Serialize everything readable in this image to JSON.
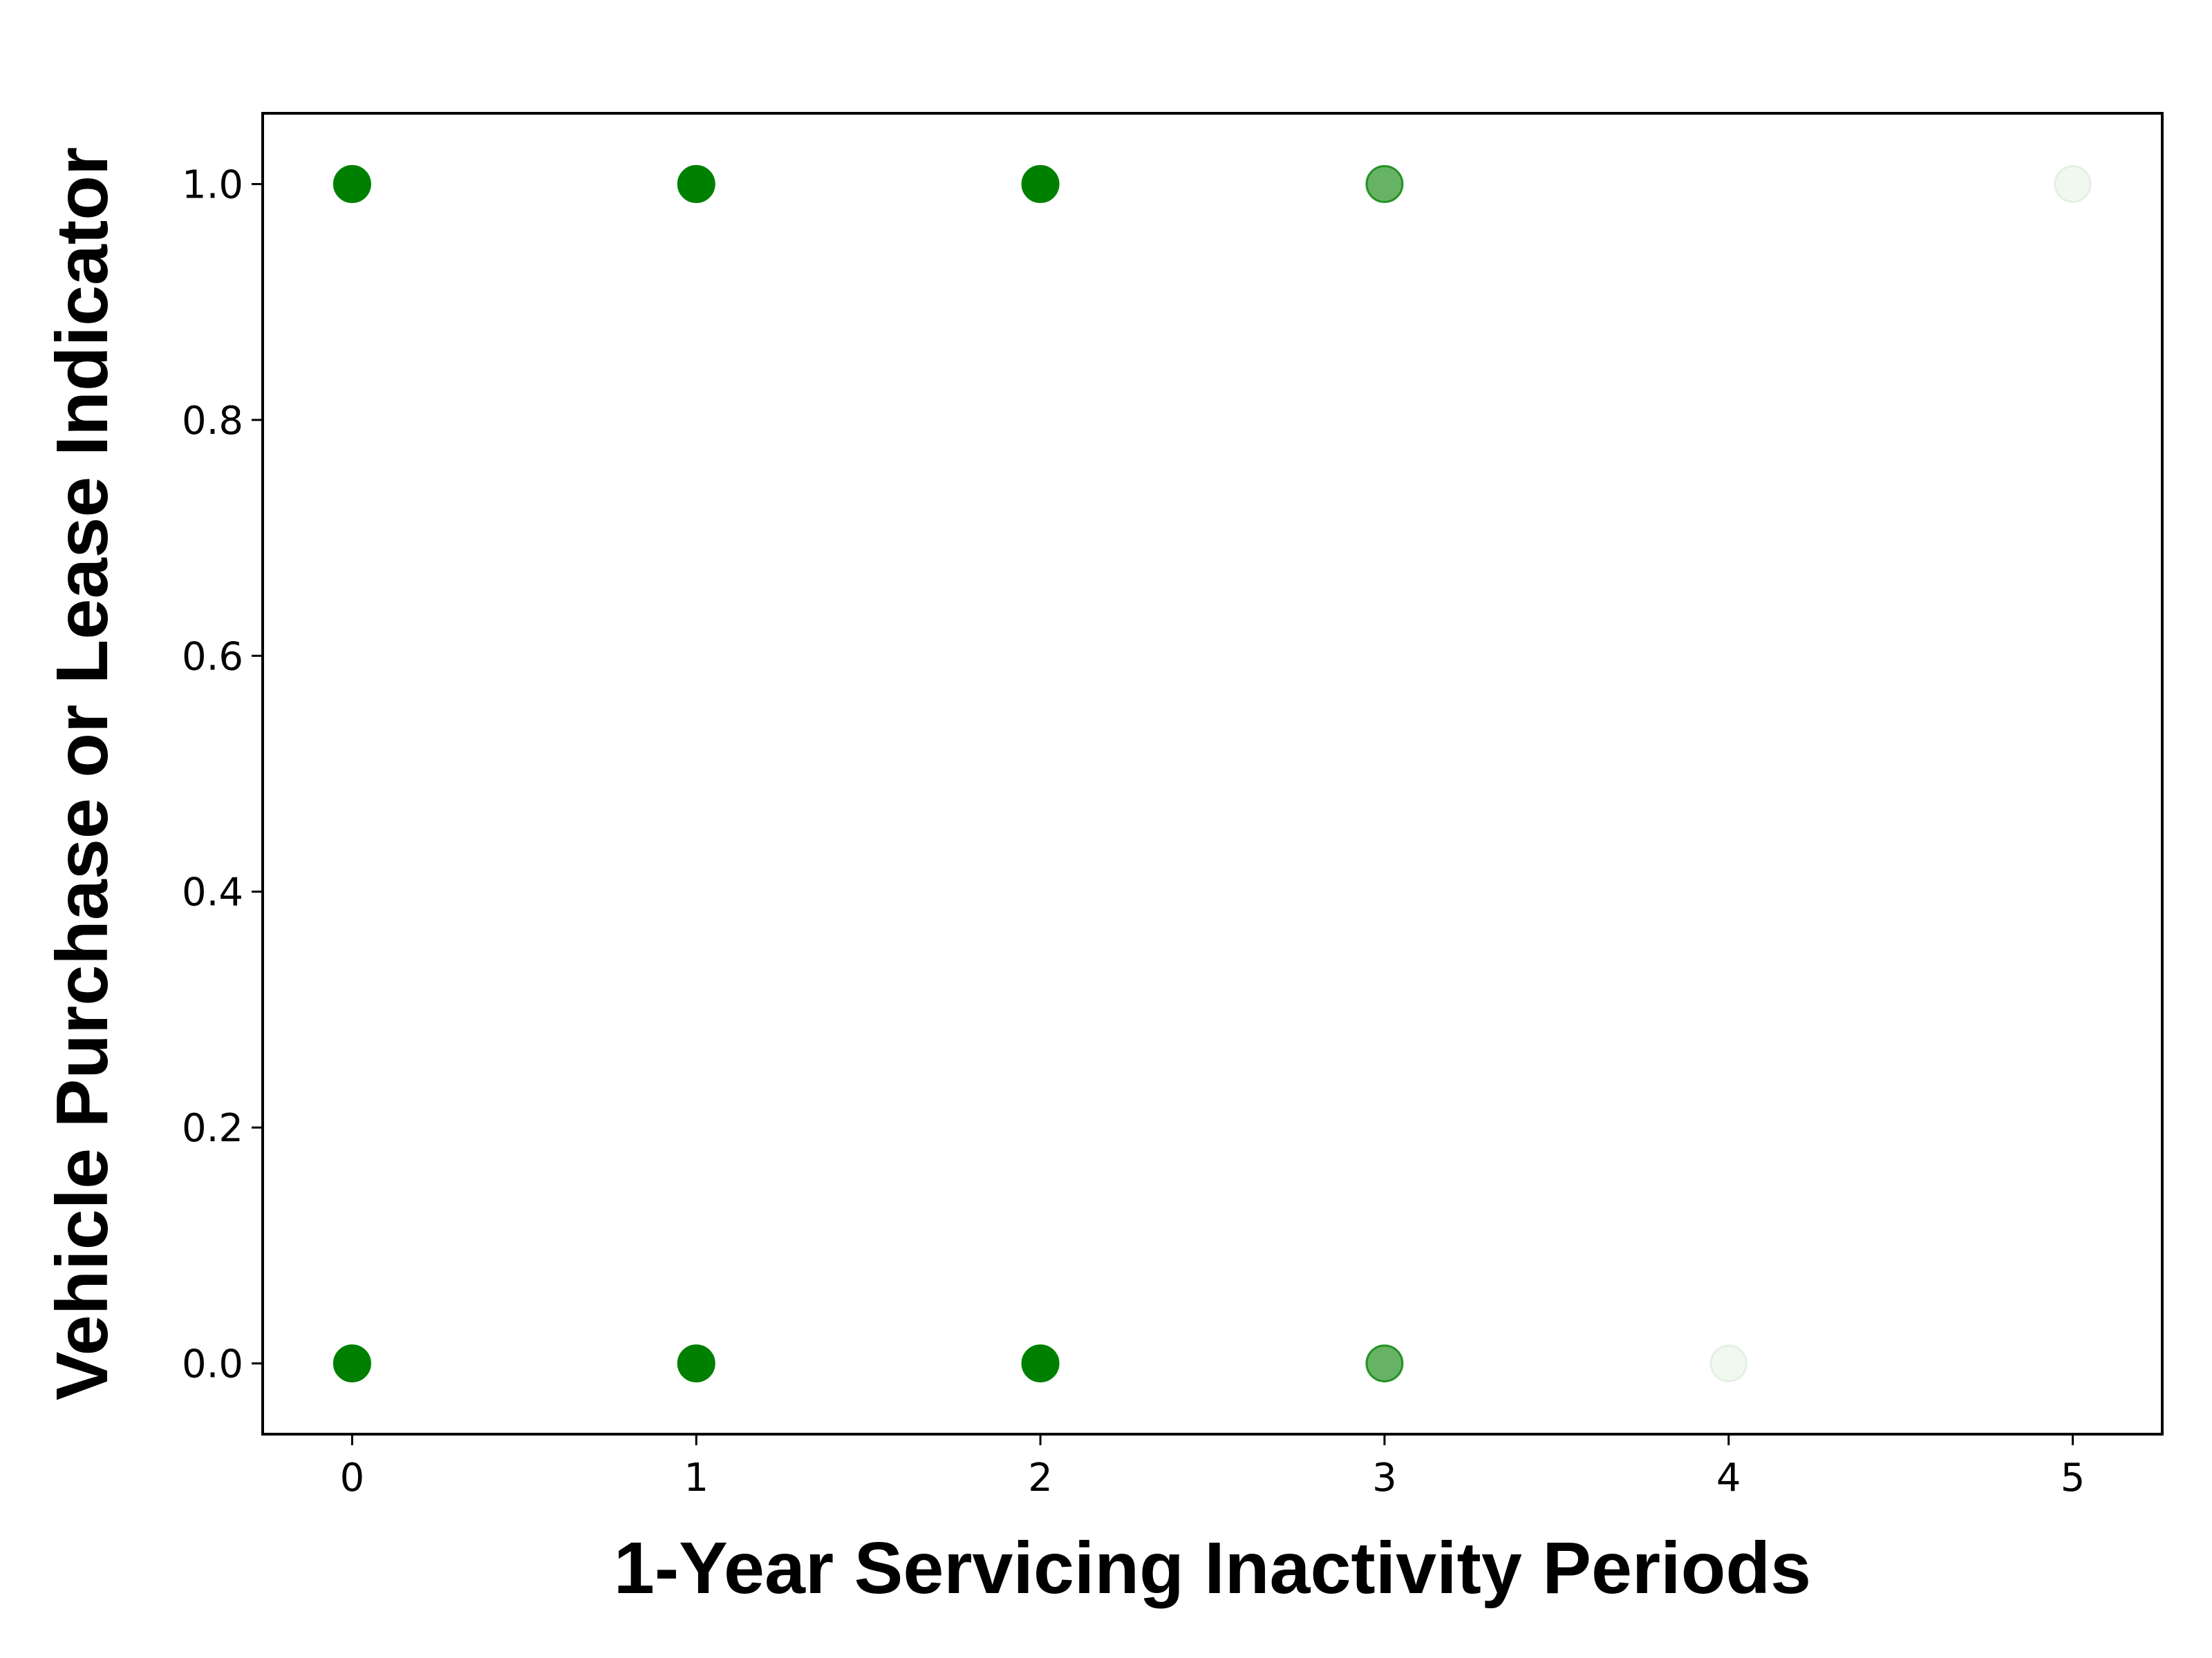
{
  "chart_data": {
    "type": "scatter",
    "xlabel": "1-Year Servicing Inactivity Periods",
    "ylabel": "Vehicle Purchase or Lease Indicator",
    "xlim": [
      -0.26,
      5.26
    ],
    "ylim": [
      -0.06,
      1.06
    ],
    "x_ticks": [
      "0",
      "1",
      "2",
      "3",
      "4",
      "5"
    ],
    "y_ticks": [
      "0.0",
      "0.2",
      "0.4",
      "0.6",
      "0.8",
      "1.0"
    ],
    "x_tick_values": [
      0,
      1,
      2,
      3,
      4,
      5
    ],
    "y_tick_values": [
      0.0,
      0.2,
      0.4,
      0.6,
      0.8,
      1.0
    ],
    "grid": false,
    "marker_color": "#008000",
    "points": [
      {
        "x": 0,
        "y": 1,
        "opacity": 1.0
      },
      {
        "x": 1,
        "y": 1,
        "opacity": 1.0
      },
      {
        "x": 2,
        "y": 1,
        "opacity": 1.0
      },
      {
        "x": 3,
        "y": 1,
        "opacity": 0.6
      },
      {
        "x": 5,
        "y": 1,
        "opacity": 0.06
      },
      {
        "x": 0,
        "y": 0,
        "opacity": 1.0
      },
      {
        "x": 1,
        "y": 0,
        "opacity": 1.0
      },
      {
        "x": 2,
        "y": 0,
        "opacity": 1.0
      },
      {
        "x": 3,
        "y": 0,
        "opacity": 0.6
      },
      {
        "x": 4,
        "y": 0,
        "opacity": 0.06
      }
    ]
  }
}
